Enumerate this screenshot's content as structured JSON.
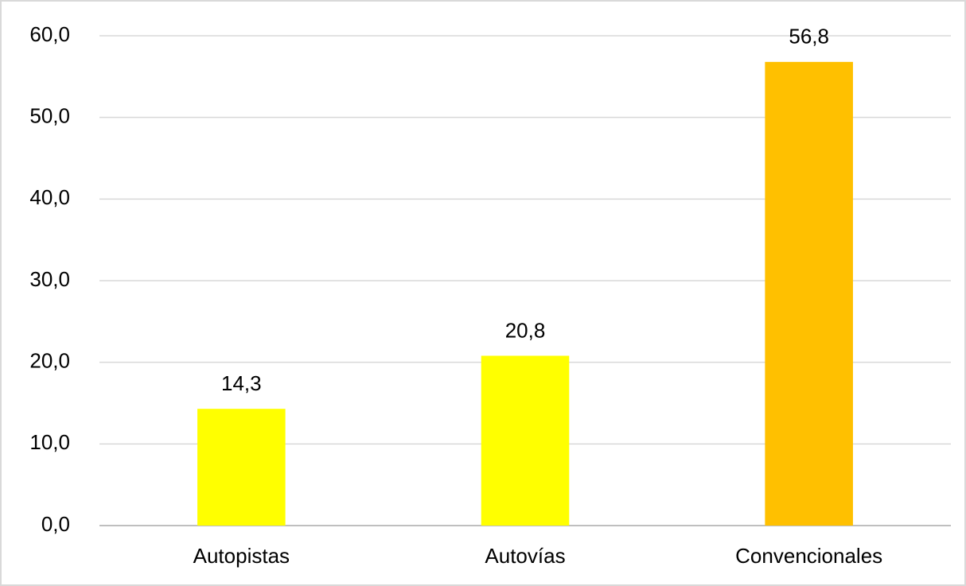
{
  "chart_data": {
    "type": "bar",
    "categories": [
      "Autopistas",
      "Autovías",
      "Convencionales"
    ],
    "values": [
      14.3,
      20.8,
      56.8
    ],
    "value_labels": [
      "14,3",
      "20,8",
      "56,8"
    ],
    "colors": [
      "#ffff00",
      "#ffff00",
      "#ffc000"
    ],
    "ylim": [
      0,
      60
    ],
    "yticks": [
      {
        "value": 0,
        "label": "0,0"
      },
      {
        "value": 10,
        "label": "10,0"
      },
      {
        "value": 20,
        "label": "20,0"
      },
      {
        "value": 30,
        "label": "30,0"
      },
      {
        "value": 40,
        "label": "40,0"
      },
      {
        "value": 50,
        "label": "50,0"
      },
      {
        "value": 60,
        "label": "60,0"
      }
    ],
    "grid": true
  }
}
